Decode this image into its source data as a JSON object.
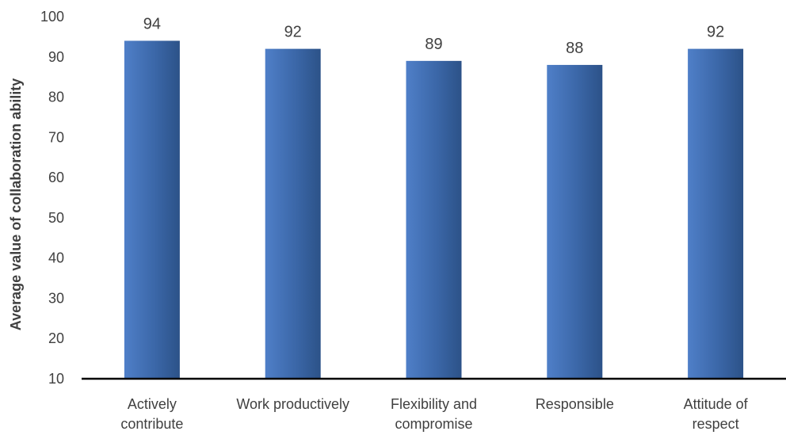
{
  "chart_data": {
    "type": "bar",
    "categories": [
      [
        "Actively",
        "contribute"
      ],
      [
        "Work productively"
      ],
      [
        "Flexibility and",
        "compromise"
      ],
      [
        "Responsible"
      ],
      [
        "Attitude of",
        "respect"
      ]
    ],
    "values": [
      94,
      92,
      89,
      88,
      92
    ],
    "title": "",
    "xlabel": "",
    "ylabel": "Average value of collaboration ability",
    "ylim": [
      10,
      100
    ],
    "yticks": [
      10,
      20,
      30,
      40,
      50,
      60,
      70,
      80,
      90,
      100
    ],
    "grid": false,
    "bar_color": "#4472c4",
    "bar_color_dark": "#2d5282",
    "axis_color": "#000000",
    "text_color": "#404040"
  }
}
